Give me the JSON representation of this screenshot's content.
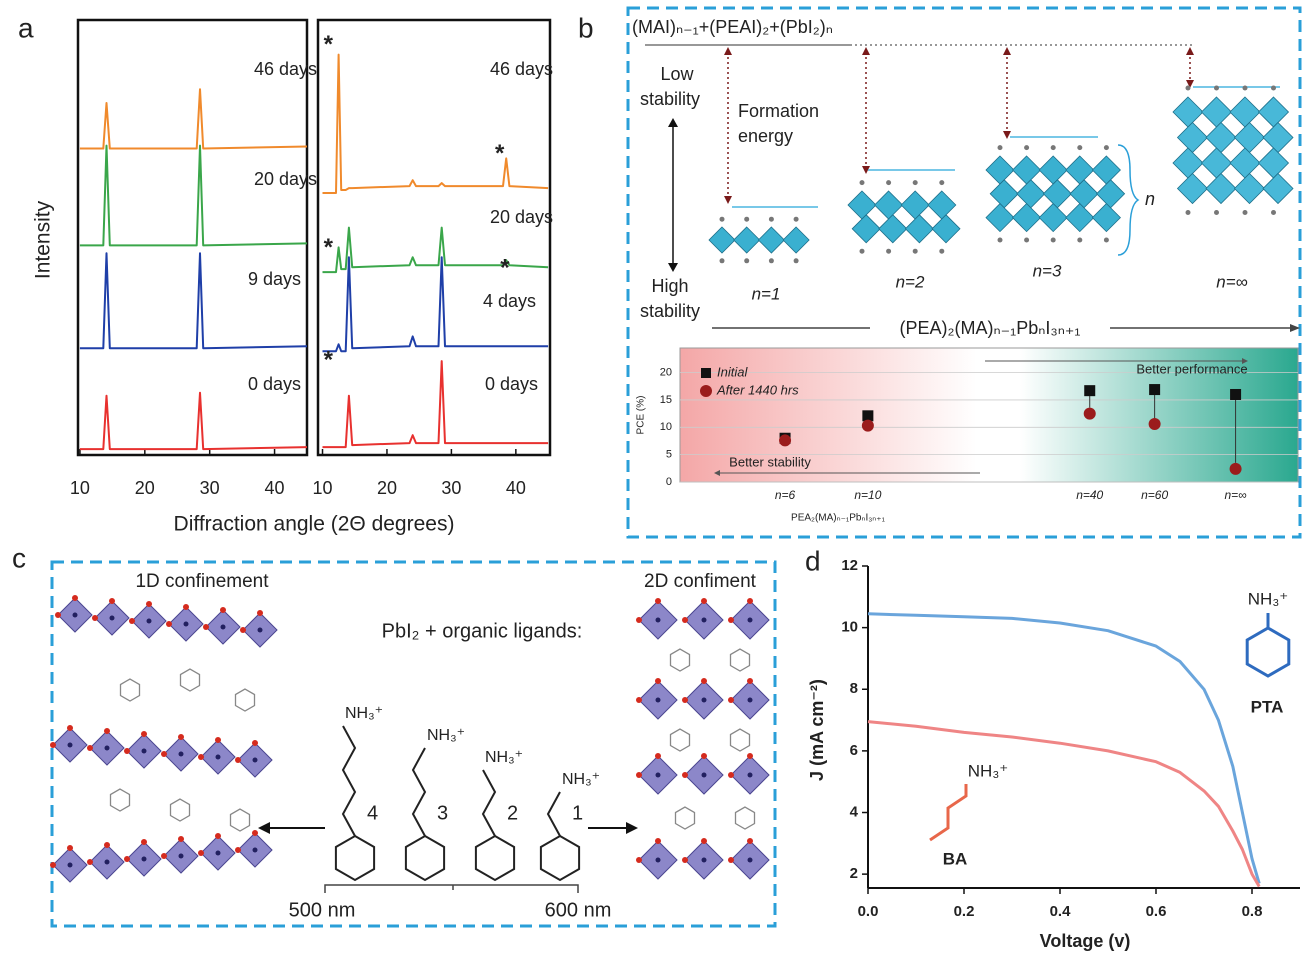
{
  "panel_labels": [
    "a",
    "b",
    "c",
    "d"
  ],
  "chart_data": [
    {
      "type": "line",
      "xlabel": "Diffraction angle (2Θ degrees)",
      "ylabel": "Intensity",
      "xlim": [
        9.7,
        45
      ],
      "xticks": [
        10,
        20,
        30,
        40
      ],
      "ylim": [
        0,
        4.4
      ],
      "x": [
        10,
        13.6,
        14.1,
        14.6,
        28.0,
        28.5,
        29.0,
        45
      ],
      "series": [
        {
          "name": "0 days",
          "color": "#e8312f",
          "values": [
            0.06,
            0.06,
            0.6,
            0.06,
            0.06,
            0.63,
            0.06,
            0.08
          ]
        },
        {
          "name": "9 days",
          "color": "#1f3fa8",
          "values": [
            1.08,
            1.08,
            2.04,
            1.08,
            1.08,
            2.04,
            1.08,
            1.1
          ]
        },
        {
          "name": "20 days",
          "color": "#3aa64a",
          "values": [
            2.12,
            2.12,
            3.13,
            2.12,
            2.12,
            3.13,
            2.12,
            2.14
          ]
        },
        {
          "name": "46 days",
          "color": "#f08a2c",
          "values": [
            3.1,
            3.1,
            3.56,
            3.1,
            3.1,
            3.7,
            3.1,
            3.12
          ]
        }
      ]
    },
    {
      "type": "line",
      "xlim": [
        9.3,
        45.3
      ],
      "xticks": [
        10,
        20,
        30,
        40
      ],
      "ylim": [
        0,
        4.4
      ],
      "x": [
        10,
        12.1,
        12.5,
        12.9,
        13.6,
        14.1,
        14.6,
        23.5,
        24,
        24.5,
        28,
        28.5,
        29,
        38,
        38.5,
        39,
        45
      ],
      "series": [
        {
          "name": "0 days",
          "color": "#e8312f",
          "values": [
            0.08,
            0.08,
            0.08,
            0.08,
            0.08,
            0.6,
            0.1,
            0.12,
            0.2,
            0.12,
            0.12,
            0.95,
            0.12,
            0.12,
            0.12,
            0.12,
            0.12
          ]
        },
        {
          "name": "4 days",
          "color": "#1f3fa8",
          "values": [
            1.05,
            1.05,
            1.12,
            1.05,
            1.05,
            2.0,
            1.08,
            1.1,
            1.2,
            1.1,
            1.1,
            2.0,
            1.1,
            1.1,
            1.1,
            1.1,
            1.1
          ]
        },
        {
          "name": "20 days",
          "color": "#3aa64a",
          "values": [
            1.85,
            1.85,
            2.1,
            1.88,
            1.88,
            2.3,
            1.9,
            1.92,
            2.0,
            1.92,
            1.92,
            2.3,
            1.92,
            1.92,
            1.97,
            1.92,
            1.9
          ]
        },
        {
          "name": "46 days",
          "color": "#f08a2c",
          "values": [
            2.65,
            2.65,
            4.05,
            2.68,
            2.68,
            2.7,
            2.7,
            2.72,
            2.78,
            2.72,
            2.72,
            2.75,
            2.72,
            2.72,
            3.0,
            2.72,
            2.7
          ]
        }
      ],
      "annotations": [
        {
          "text": "*",
          "x": 10.9,
          "y": 4.2
        },
        {
          "text": "*",
          "x": 37.5,
          "y": 3.1
        },
        {
          "text": "*",
          "x": 10.9,
          "y": 2.15
        },
        {
          "text": "*",
          "x": 38.3,
          "y": 1.94
        },
        {
          "text": "*",
          "x": 10.9,
          "y": 1.01
        }
      ]
    },
    {
      "type": "scatter",
      "ylabel": "PCE (%)",
      "xlabel": "PEA₂(MA)ₙ₋₁PbₙI₃ₙ₊₁",
      "categories": [
        "n=6",
        "n=10",
        "n=40",
        "n=60",
        "n=∞"
      ],
      "ylim": [
        0,
        24.5
      ],
      "yticks": [
        0,
        5,
        10,
        15,
        20
      ],
      "grid": true,
      "series": [
        {
          "name": "Initial",
          "color": "#111111",
          "marker": "square",
          "values": [
            8,
            12.1,
            16.7,
            16.9,
            16
          ]
        },
        {
          "name": "After 1440 hrs",
          "color": "#9b1c1c",
          "marker": "circle",
          "values": [
            7.6,
            10.3,
            12.5,
            10.6,
            2.4
          ]
        }
      ],
      "annotations": [
        "Better performance",
        "Better stability"
      ]
    },
    {
      "type": "line",
      "xlabel": "Voltage (v)",
      "ylabel": "J (mA cm⁻²)",
      "xlim": [
        0,
        0.9
      ],
      "xticks": [
        {
          "value": 0,
          "label": "0.0"
        },
        0.2,
        0.4,
        0.6,
        0.8
      ],
      "ylim": [
        1.55,
        12
      ],
      "yticks": [
        2,
        4,
        6,
        8,
        10,
        12
      ],
      "x": [
        0,
        0.1,
        0.2,
        0.3,
        0.4,
        0.5,
        0.6,
        0.65,
        0.7,
        0.73,
        0.76,
        0.78,
        0.8,
        0.815
      ],
      "series": [
        {
          "name": "PTA",
          "color": "#6aa5dc",
          "values": [
            10.45,
            10.4,
            10.35,
            10.3,
            10.15,
            9.9,
            9.4,
            8.9,
            8.0,
            7.0,
            5.5,
            4.0,
            2.5,
            1.7
          ]
        },
        {
          "name": "BA",
          "color": "#ef8585",
          "values": [
            6.95,
            6.8,
            6.6,
            6.45,
            6.25,
            6.0,
            5.65,
            5.3,
            4.7,
            4.2,
            3.4,
            2.8,
            2.0,
            1.6
          ]
        }
      ],
      "molecule_labels": [
        "NH₃⁺",
        "NH₃⁺"
      ]
    }
  ],
  "schematic_b": {
    "formula_top": "(MAI)ₙ₋₁+(PEAI)₂+(PbI₂)ₙ",
    "low_stability": [
      "Low",
      "stability"
    ],
    "high_stability": [
      "High",
      "stability"
    ],
    "formation_energy": [
      "Formation",
      "energy"
    ],
    "phases": [
      "n=1",
      "n=2",
      "n=3",
      "n=∞"
    ],
    "n_brace": "n",
    "formula_axis": "(PEA)₂(MA)ₙ₋₁PbₙI₃ₙ₊₁"
  },
  "schematic_c": {
    "left_title": "1D confinement",
    "right_title": "2D confiment",
    "reaction": "PbI₂ + organic ligands:",
    "ligand_heads": [
      "NH₃⁺",
      "NH₃⁺",
      "NH₃⁺",
      "NH₃⁺"
    ],
    "chain_lengths": [
      "4",
      "3",
      "2",
      "1"
    ],
    "scale_labels": [
      "500 nm",
      "600 nm"
    ]
  }
}
